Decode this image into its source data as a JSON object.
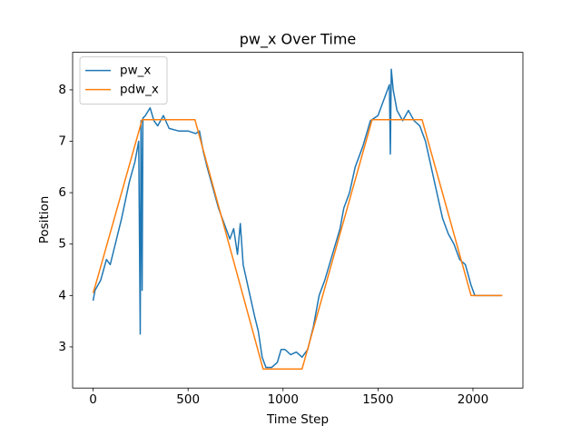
{
  "chart_data": {
    "type": "line",
    "title": "pw_x Over Time",
    "x_label": "Time Step",
    "y_label": "Position",
    "xlim": [
      -108,
      2263
    ],
    "ylim": [
      2.2,
      8.73
    ],
    "xticks": [
      0,
      500,
      1000,
      1500,
      2000
    ],
    "yticks": [
      3,
      4,
      5,
      6,
      7,
      8
    ],
    "legend": "upper left",
    "grid": false,
    "series": [
      {
        "name": "pw_x",
        "color": "#1f77b4",
        "x": [
          0,
          10,
          40,
          70,
          90,
          110,
          150,
          190,
          220,
          240,
          248,
          252,
          258,
          262,
          275,
          300,
          320,
          340,
          370,
          400,
          450,
          500,
          540,
          560,
          580,
          600,
          630,
          660,
          690,
          720,
          740,
          760,
          775,
          790,
          820,
          850,
          870,
          890,
          910,
          940,
          970,
          990,
          1010,
          1040,
          1070,
          1100,
          1130,
          1160,
          1190,
          1220,
          1260,
          1300,
          1320,
          1350,
          1380,
          1420,
          1460,
          1500,
          1530,
          1560,
          1565,
          1570,
          1580,
          1600,
          1630,
          1660,
          1690,
          1720,
          1750,
          1780,
          1810,
          1840,
          1870,
          1900,
          1930,
          1960,
          1990,
          2010,
          2050,
          2100,
          2150
        ],
        "values": [
          3.9,
          4.1,
          4.3,
          4.7,
          4.6,
          4.9,
          5.5,
          6.2,
          6.6,
          7.0,
          3.25,
          7.4,
          4.1,
          7.45,
          7.5,
          7.65,
          7.4,
          7.3,
          7.5,
          7.25,
          7.2,
          7.2,
          7.15,
          7.2,
          6.8,
          6.5,
          6.1,
          5.7,
          5.4,
          5.1,
          5.3,
          4.8,
          5.4,
          4.6,
          4.1,
          3.6,
          3.3,
          2.8,
          2.6,
          2.6,
          2.7,
          2.95,
          2.95,
          2.85,
          2.9,
          2.8,
          2.95,
          3.4,
          4.0,
          4.3,
          4.8,
          5.3,
          5.7,
          6.0,
          6.5,
          6.9,
          7.4,
          7.5,
          7.8,
          8.1,
          6.75,
          8.4,
          8.0,
          7.6,
          7.4,
          7.6,
          7.4,
          7.3,
          7.0,
          6.5,
          6.0,
          5.5,
          5.2,
          5.0,
          4.7,
          4.6,
          4.2,
          4.0,
          4.0,
          4.0,
          4.0
        ]
      },
      {
        "name": "pdw_x",
        "color": "#ff7f0e",
        "x": [
          0,
          20,
          258,
          536,
          895,
          1100,
          1469,
          1732,
          1990,
          2155
        ],
        "values": [
          4.05,
          4.3,
          7.42,
          7.42,
          2.57,
          2.57,
          7.42,
          7.42,
          4.0,
          4.0
        ]
      }
    ]
  }
}
